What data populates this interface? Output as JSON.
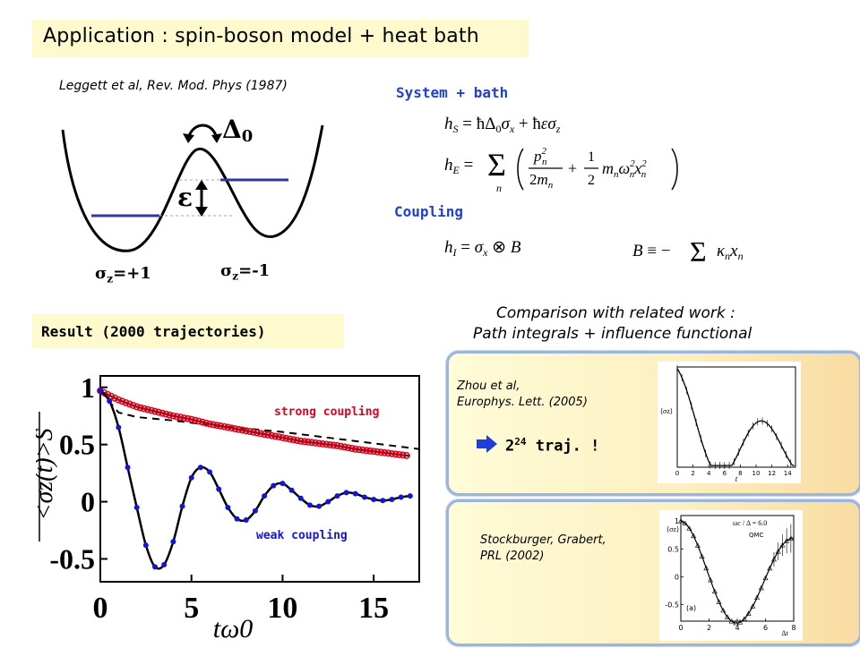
{
  "title": "Application : spin-boson model + heat bath",
  "reference_leggett": "Leggett et al, Rev. Mod. Phys (1987)",
  "potential": {
    "delta_label": "Δ",
    "delta_sub": "0",
    "epsilon_label": "ε",
    "sigma_left": "σ",
    "sigma_left_sub": "z",
    "sigma_left_val": "=+1",
    "sigma_right": "σ",
    "sigma_right_sub": "z",
    "sigma_right_val": "=-1"
  },
  "system_bath_label": "System + bath",
  "coupling_label": "Coupling",
  "equations": {
    "hS": "h_S = ħΔ_0 σ_x + ħε σ_z",
    "hE": "h_E = Σ_n ( p_n² / 2m_n + ½ m_n ω_n² x_n² )",
    "hI": "h_I = σ_x ⊗ B",
    "B": "B ≡ − Σ κ_n x_n"
  },
  "result_label": "Result (2000 trajectories)",
  "comparison_line1": "Comparison with related work :",
  "comparison_line2": "Path integrals + influence functional",
  "card1": {
    "ref_line1": "Zhou et al,",
    "ref_line2": "Europhys. Lett. (2005)",
    "traj_base": "2",
    "traj_exp": "24",
    "traj_rest": " traj. !",
    "inset_ticks_x": [
      "0",
      "2",
      "4",
      "6",
      "8",
      "10",
      "12",
      "14"
    ],
    "inset_xlabel": "t",
    "inset_ylabel": "⟨σz⟩"
  },
  "card2": {
    "ref_line1": "Stockburger, Grabert,",
    "ref_line2": "PRL (2002)",
    "inset_legend_title": "ωc / Δ = 6.0",
    "inset_legend_item": "QMC",
    "inset_ticks_x": [
      "0",
      "2",
      "4",
      "6",
      "8"
    ],
    "inset_ticks_y": [
      "1",
      "0.5",
      "0",
      "-0.5"
    ],
    "inset_panel": "(a)",
    "inset_xlabel": "Δt",
    "inset_ylabel": "⟨σz⟩"
  },
  "colors": {
    "title_bg": "#fffacd",
    "blue_label": "#1f3fd6",
    "strong": "#e0001b",
    "weak": "#1414d8",
    "levels": "#2b3a9c"
  },
  "chart_data": {
    "type": "line",
    "xlabel": "tω0",
    "ylabel": "<σz(t)>S",
    "xlim": [
      0,
      17.5
    ],
    "ylim": [
      -0.7,
      1.1
    ],
    "xticks": [
      "0",
      "5",
      "10",
      "15"
    ],
    "yticks": [
      "1",
      "0.5",
      "0",
      "-0.5"
    ],
    "series": [
      {
        "name": "strong coupling",
        "style": "red open circles + solid line",
        "x": [
          0,
          1,
          2,
          3,
          4,
          5,
          6,
          7,
          8,
          9,
          10,
          11,
          12,
          13,
          14,
          15,
          16,
          17
        ],
        "y": [
          0.97,
          0.89,
          0.83,
          0.79,
          0.75,
          0.72,
          0.68,
          0.65,
          0.62,
          0.59,
          0.56,
          0.53,
          0.51,
          0.49,
          0.46,
          0.44,
          0.42,
          0.4
        ]
      },
      {
        "name": "weak coupling",
        "style": "blue dots + solid line",
        "x": [
          0,
          0.5,
          1,
          1.5,
          2,
          2.5,
          3,
          3.5,
          4,
          4.5,
          5,
          5.5,
          6,
          6.5,
          7,
          7.5,
          8,
          8.5,
          9,
          9.5,
          10,
          10.5,
          11,
          11.5,
          12,
          12.5,
          13,
          13.5,
          14,
          14.5,
          15,
          15.5,
          16,
          16.5,
          17
        ],
        "y": [
          0.97,
          0.88,
          0.65,
          0.3,
          -0.05,
          -0.38,
          -0.57,
          -0.55,
          -0.35,
          -0.04,
          0.21,
          0.3,
          0.26,
          0.11,
          -0.05,
          -0.15,
          -0.16,
          -0.08,
          0.05,
          0.14,
          0.16,
          0.1,
          0.03,
          -0.03,
          -0.04,
          0.0,
          0.05,
          0.08,
          0.07,
          0.04,
          0.02,
          0.01,
          0.02,
          0.04,
          0.05
        ]
      },
      {
        "name": "",
        "style": "black dashed",
        "x": [
          0,
          1,
          2,
          4,
          6,
          8,
          10,
          12,
          14,
          16,
          17.5
        ],
        "y": [
          0.97,
          0.78,
          0.74,
          0.71,
          0.67,
          0.64,
          0.61,
          0.57,
          0.53,
          0.49,
          0.46
        ]
      }
    ],
    "annotations": [
      "strong coupling",
      "weak coupling"
    ]
  }
}
